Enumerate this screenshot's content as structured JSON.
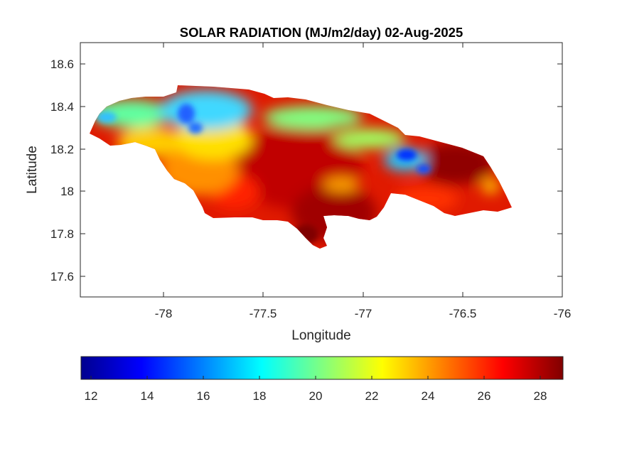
{
  "title": "SOLAR RADIATION (MJ/m2/day) 02-Aug-2025",
  "map": {
    "xlabel": "Longitude",
    "ylabel": "Latitude",
    "xlim": [
      -78.42,
      -76.0
    ],
    "ylim": [
      17.5,
      18.7
    ],
    "xticks": [
      "-78",
      "-77.5",
      "-77",
      "-76.5",
      "-76"
    ],
    "xtick_values": [
      -78,
      -77.5,
      -77,
      -76.5,
      -76
    ],
    "yticks": [
      "17.6",
      "17.8",
      "18",
      "18.2",
      "18.4",
      "18.6"
    ],
    "ytick_values": [
      17.6,
      17.8,
      18.0,
      18.2,
      18.4,
      18.6
    ]
  },
  "colorbar": {
    "colormap": "jet",
    "range": [
      11.5,
      28.7
    ],
    "ticks": [
      "12",
      "14",
      "16",
      "18",
      "20",
      "22",
      "24",
      "26",
      "28"
    ],
    "tick_values": [
      12,
      14,
      16,
      18,
      20,
      22,
      24,
      26,
      28
    ],
    "colors": [
      "#00008f",
      "#0000ff",
      "#0080ff",
      "#00ffff",
      "#80ff80",
      "#ffff00",
      "#ff8000",
      "#ff0000",
      "#800000"
    ]
  }
}
